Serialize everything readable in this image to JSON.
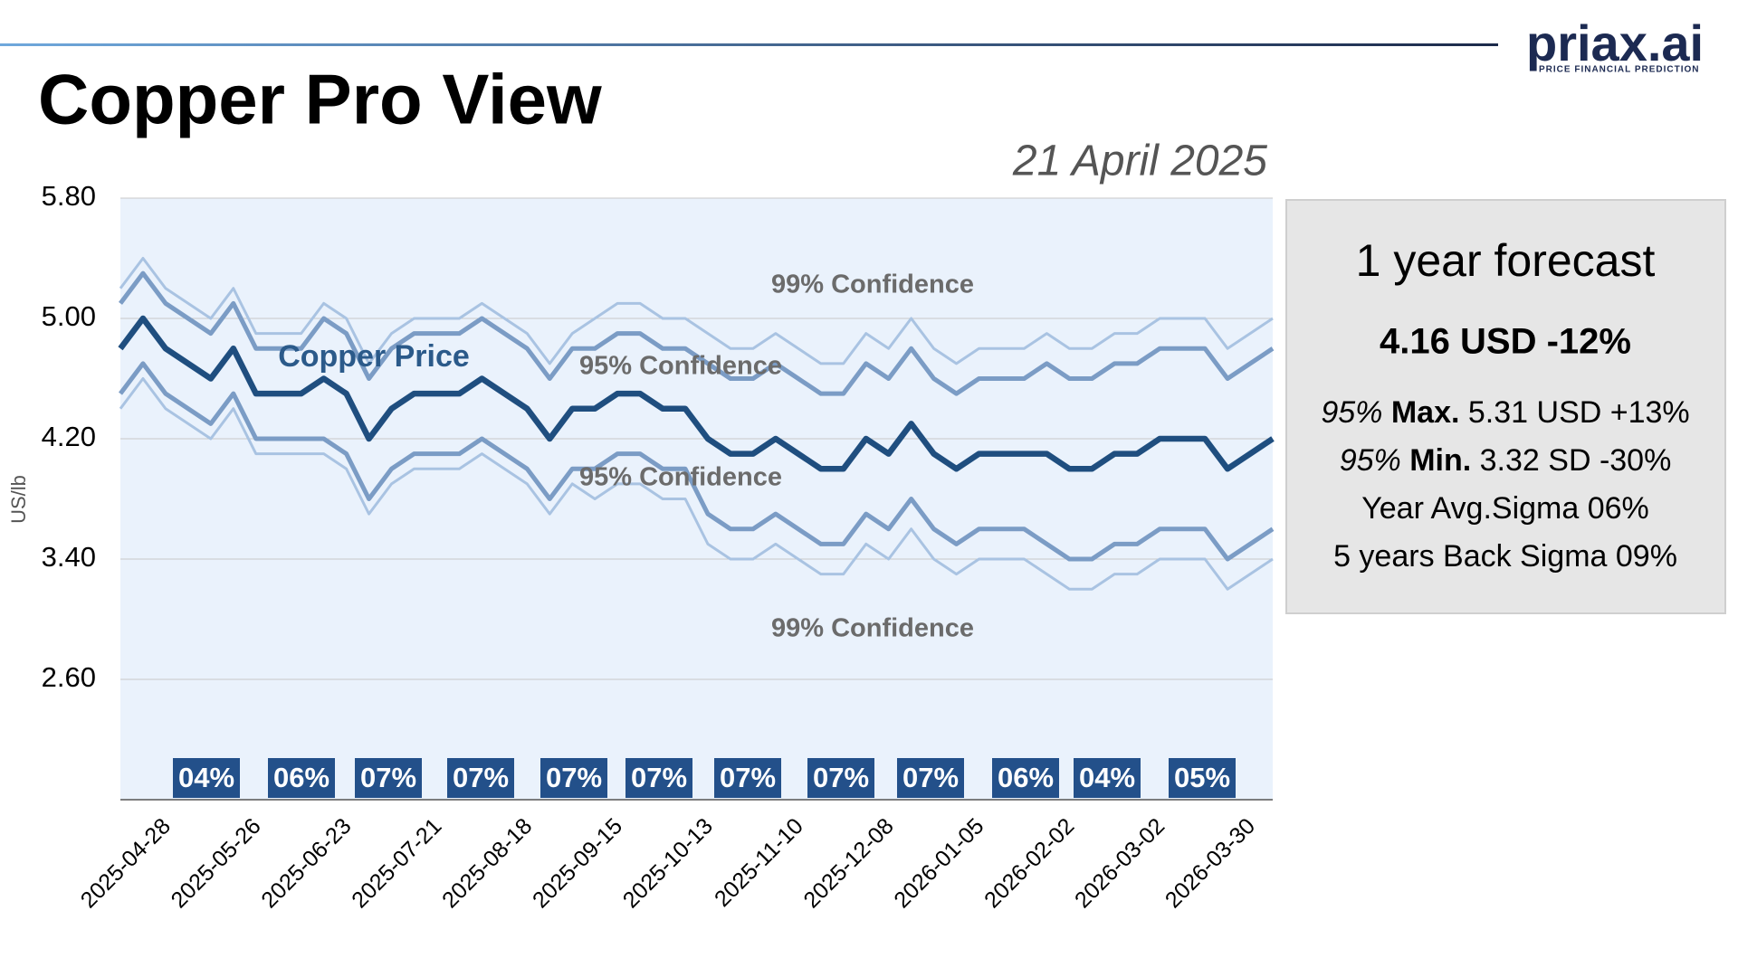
{
  "header": {
    "title": "Copper Pro View",
    "date": "21 April 2025",
    "logo": "priax.ai",
    "logo_tagline": "PRICE FINANCIAL PREDICTION"
  },
  "chart_data": {
    "type": "line",
    "y_label": "US/lb",
    "ylim": [
      1.8,
      5.8
    ],
    "yticks": [
      {
        "value": 2.6,
        "label": "2.60"
      },
      {
        "value": 3.4,
        "label": "3.40"
      },
      {
        "value": 4.2,
        "label": "4.20"
      },
      {
        "value": 5.0,
        "label": "5.00"
      },
      {
        "value": 5.8,
        "label": "5.80"
      }
    ],
    "grid": true,
    "categories": [
      "2025-04-28",
      null,
      null,
      null,
      "2025-05-26",
      null,
      null,
      null,
      "2025-06-23",
      null,
      null,
      null,
      "2025-07-21",
      null,
      null,
      null,
      "2025-08-18",
      null,
      null,
      null,
      "2025-09-15",
      null,
      null,
      null,
      "2025-10-13",
      null,
      null,
      null,
      "2025-11-10",
      null,
      null,
      null,
      "2025-12-08",
      null,
      null,
      null,
      "2026-01-05",
      null,
      null,
      null,
      "2026-02-02",
      null,
      null,
      null,
      "2026-03-02",
      null,
      null,
      null,
      "2026-03-30",
      null,
      null,
      null
    ],
    "series": [
      {
        "name": "99% Confidence",
        "color": "#a9c3e2",
        "values": [
          5.2,
          5.4,
          5.2,
          5.1,
          5.0,
          5.2,
          4.9,
          4.9,
          4.9,
          5.1,
          5.0,
          4.7,
          4.9,
          5.0,
          5.0,
          5.0,
          5.1,
          5.0,
          4.9,
          4.7,
          4.9,
          5.0,
          5.1,
          5.1,
          5.0,
          5.0,
          4.9,
          4.8,
          4.8,
          4.9,
          4.8,
          4.7,
          4.7,
          4.9,
          4.8,
          5.0,
          4.8,
          4.7,
          4.8,
          4.8,
          4.8,
          4.9,
          4.8,
          4.8,
          4.9,
          4.9,
          5.0,
          5.0,
          5.0,
          4.8,
          4.9,
          5.0
        ]
      },
      {
        "name": "95% Confidence",
        "color": "#7b9cc5",
        "values": [
          5.1,
          5.3,
          5.1,
          5.0,
          4.9,
          5.1,
          4.8,
          4.8,
          4.8,
          5.0,
          4.9,
          4.6,
          4.8,
          4.9,
          4.9,
          4.9,
          5.0,
          4.9,
          4.8,
          4.6,
          4.8,
          4.8,
          4.9,
          4.9,
          4.8,
          4.8,
          4.7,
          4.6,
          4.6,
          4.7,
          4.6,
          4.5,
          4.5,
          4.7,
          4.6,
          4.8,
          4.6,
          4.5,
          4.6,
          4.6,
          4.6,
          4.7,
          4.6,
          4.6,
          4.7,
          4.7,
          4.8,
          4.8,
          4.8,
          4.6,
          4.7,
          4.8
        ]
      },
      {
        "name": "Copper Price",
        "color": "#1f4e7f",
        "values": [
          4.8,
          5.0,
          4.8,
          4.7,
          4.6,
          4.8,
          4.5,
          4.5,
          4.5,
          4.6,
          4.5,
          4.2,
          4.4,
          4.5,
          4.5,
          4.5,
          4.6,
          4.5,
          4.4,
          4.2,
          4.4,
          4.4,
          4.5,
          4.5,
          4.4,
          4.4,
          4.2,
          4.1,
          4.1,
          4.2,
          4.1,
          4.0,
          4.0,
          4.2,
          4.1,
          4.3,
          4.1,
          4.0,
          4.1,
          4.1,
          4.1,
          4.1,
          4.0,
          4.0,
          4.1,
          4.1,
          4.2,
          4.2,
          4.2,
          4.0,
          4.1,
          4.2
        ]
      },
      {
        "name": "95% Confidence",
        "color": "#7b9cc5",
        "values": [
          4.5,
          4.7,
          4.5,
          4.4,
          4.3,
          4.5,
          4.2,
          4.2,
          4.2,
          4.2,
          4.1,
          3.8,
          4.0,
          4.1,
          4.1,
          4.1,
          4.2,
          4.1,
          4.0,
          3.8,
          4.0,
          4.0,
          4.1,
          4.1,
          4.0,
          4.0,
          3.7,
          3.6,
          3.6,
          3.7,
          3.6,
          3.5,
          3.5,
          3.7,
          3.6,
          3.8,
          3.6,
          3.5,
          3.6,
          3.6,
          3.6,
          3.5,
          3.4,
          3.4,
          3.5,
          3.5,
          3.6,
          3.6,
          3.6,
          3.4,
          3.5,
          3.6
        ]
      },
      {
        "name": "99% Confidence",
        "color": "#a9c3e2",
        "values": [
          4.4,
          4.6,
          4.4,
          4.3,
          4.2,
          4.4,
          4.1,
          4.1,
          4.1,
          4.1,
          4.0,
          3.7,
          3.9,
          4.0,
          4.0,
          4.0,
          4.1,
          4.0,
          3.9,
          3.7,
          3.9,
          3.8,
          3.9,
          3.9,
          3.8,
          3.8,
          3.5,
          3.4,
          3.4,
          3.5,
          3.4,
          3.3,
          3.3,
          3.5,
          3.4,
          3.6,
          3.4,
          3.3,
          3.4,
          3.4,
          3.4,
          3.3,
          3.2,
          3.2,
          3.3,
          3.3,
          3.4,
          3.4,
          3.4,
          3.2,
          3.3,
          3.4
        ]
      }
    ],
    "sigma_labels": [
      "04%",
      "06%",
      "07%",
      "07%",
      "07%",
      "07%",
      "07%",
      "07%",
      "07%",
      "06%",
      "04%",
      "05%"
    ]
  },
  "panel": {
    "heading": "1 year forecast",
    "forecast": "4.16 USD -12%",
    "max": {
      "pct": "95%",
      "kind": "Max.",
      "text": "5.31 USD +13%"
    },
    "min": {
      "pct": "95%",
      "kind": "Min.",
      "text": "3.32 SD -30%"
    },
    "avg": "Year Avg.Sigma 06%",
    "back": "5 years Back Sigma 09%"
  }
}
